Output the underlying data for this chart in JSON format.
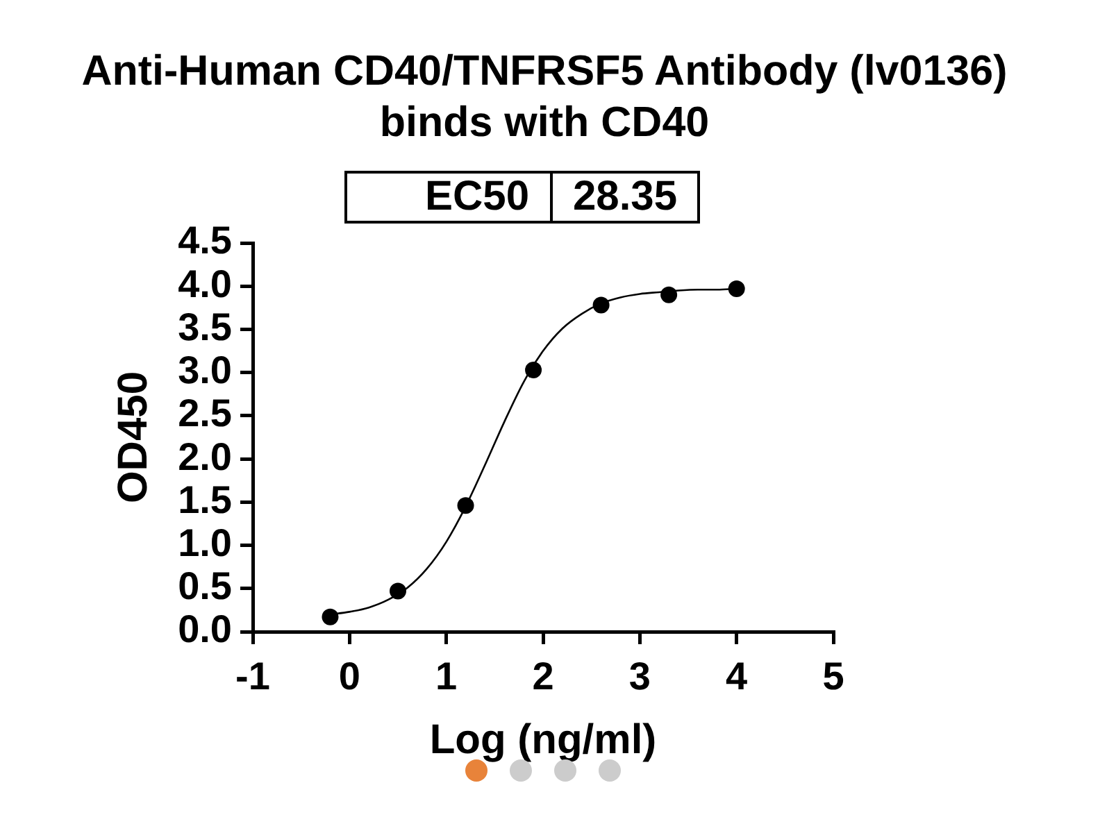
{
  "chart_data": {
    "type": "scatter",
    "title": "Anti-Human CD40/TNFRSF5 Antibody (lv0136) binds with CD40",
    "xlabel": "Log (ng/ml)",
    "ylabel": "OD450",
    "annotations": [
      "EC50",
      "28.35"
    ],
    "series": [
      {
        "color": "#000000",
        "marker": "circle",
        "x": [
          -0.2,
          0.5,
          1.2,
          1.9,
          2.6,
          3.3,
          4.0
        ],
        "values": [
          0.17,
          0.47,
          1.46,
          3.03,
          3.78,
          3.9,
          3.97
        ]
      },
      {
        "type": "line",
        "color": "#000000",
        "marker": "none",
        "line_style": "solid",
        "x": [
          -0.2,
          0,
          0.2,
          0.4,
          0.6,
          0.8,
          1.0,
          1.2,
          1.4,
          1.6,
          1.8,
          2.0,
          2.2,
          2.4,
          2.6,
          2.8,
          3.0,
          3.2,
          3.4,
          3.6,
          3.8,
          4.0
        ],
        "values": [
          0.2,
          0.23,
          0.28,
          0.37,
          0.51,
          0.73,
          1.04,
          1.45,
          1.93,
          2.43,
          2.89,
          3.25,
          3.51,
          3.68,
          3.8,
          3.87,
          3.91,
          3.93,
          3.95,
          3.96,
          3.96,
          3.97
        ]
      }
    ],
    "xlim": [
      -1,
      5
    ],
    "xticks": [
      -1,
      0,
      1,
      2,
      3,
      4,
      5
    ],
    "ylim": [
      0,
      4.5
    ],
    "yticks": [
      {
        "value": 0,
        "label": "0.0"
      },
      0.5,
      {
        "value": 1,
        "label": "1.0"
      },
      1.5,
      {
        "value": 2,
        "label": "2.0"
      },
      2.5,
      {
        "value": 3,
        "label": "3.0"
      },
      3.5,
      {
        "value": 4,
        "label": "4.0"
      },
      4.5
    ],
    "grid": false,
    "legend": false
  }
}
